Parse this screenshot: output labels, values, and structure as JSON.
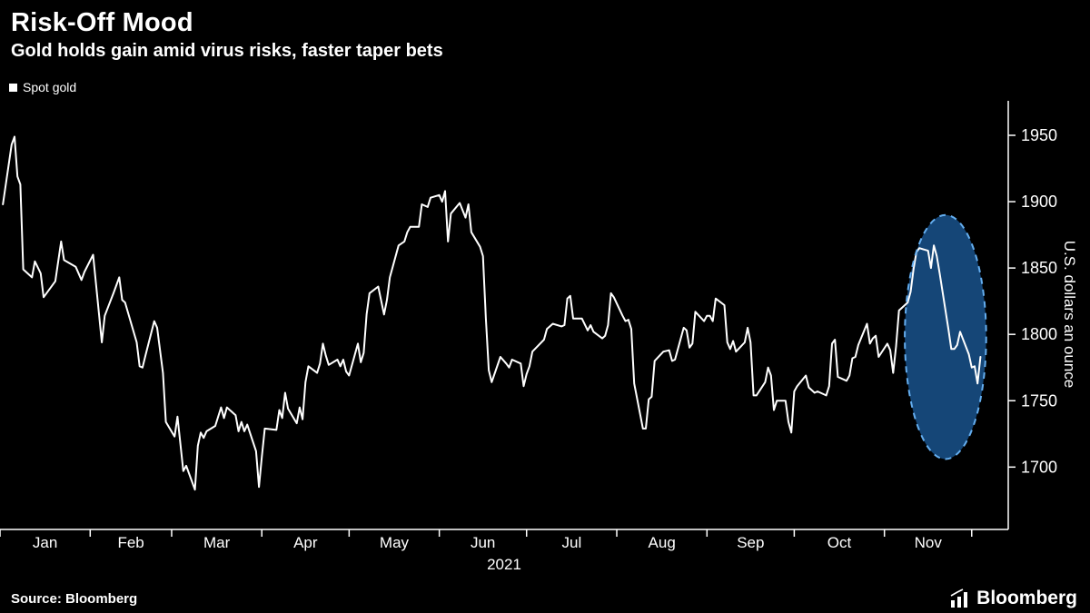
{
  "header": {
    "title": "Risk-Off Mood",
    "subtitle": "Gold holds gain amid virus risks, faster taper bets"
  },
  "legend": {
    "label": "Spot gold",
    "swatch_color": "#ffffff"
  },
  "footer": {
    "source": "Source: Bloomberg",
    "brand": "Bloomberg"
  },
  "chart_data": {
    "type": "line",
    "title": "Risk-Off Mood",
    "subtitle": "Gold holds gain amid virus risks, faster taper bets",
    "series_name": "Spot gold",
    "xlabel": "2021",
    "ylabel": "U.S. dollars an ounce",
    "x_months": [
      "Jan",
      "Feb",
      "Mar",
      "Apr",
      "May",
      "Jun",
      "Jul",
      "Aug",
      "Sep",
      "Oct",
      "Nov"
    ],
    "month_boundaries_day": [
      0,
      31,
      59,
      90,
      120,
      151,
      181,
      212,
      243,
      273,
      304,
      334
    ],
    "x_domain_days": [
      0,
      345
    ],
    "yticks": [
      1700,
      1750,
      1800,
      1850,
      1900,
      1950
    ],
    "ylim": [
      1653,
      1976
    ],
    "grid": false,
    "legend_position": "top-left",
    "background": "#000000",
    "line_color": "#ffffff",
    "points": [
      [
        1,
        1898
      ],
      [
        4,
        1943
      ],
      [
        5,
        1949
      ],
      [
        6,
        1919
      ],
      [
        7,
        1913
      ],
      [
        8,
        1849
      ],
      [
        11,
        1843
      ],
      [
        12,
        1855
      ],
      [
        14,
        1846
      ],
      [
        15,
        1828
      ],
      [
        19,
        1840
      ],
      [
        21,
        1870
      ],
      [
        22,
        1856
      ],
      [
        26,
        1851
      ],
      [
        28,
        1841
      ],
      [
        29,
        1847
      ],
      [
        32,
        1860
      ],
      [
        33,
        1838
      ],
      [
        35,
        1794
      ],
      [
        36,
        1814
      ],
      [
        39,
        1831
      ],
      [
        41,
        1843
      ],
      [
        42,
        1826
      ],
      [
        43,
        1824
      ],
      [
        47,
        1794
      ],
      [
        48,
        1776
      ],
      [
        49,
        1775
      ],
      [
        50,
        1784
      ],
      [
        53,
        1810
      ],
      [
        54,
        1805
      ],
      [
        56,
        1771
      ],
      [
        57,
        1734
      ],
      [
        60,
        1723
      ],
      [
        61,
        1738
      ],
      [
        63,
        1697
      ],
      [
        64,
        1701
      ],
      [
        67,
        1683
      ],
      [
        68,
        1716
      ],
      [
        69,
        1726
      ],
      [
        70,
        1722
      ],
      [
        71,
        1727
      ],
      [
        74,
        1731
      ],
      [
        76,
        1745
      ],
      [
        77,
        1737
      ],
      [
        78,
        1745
      ],
      [
        81,
        1739
      ],
      [
        82,
        1727
      ],
      [
        83,
        1734
      ],
      [
        84,
        1727
      ],
      [
        85,
        1732
      ],
      [
        88,
        1712
      ],
      [
        89,
        1685
      ],
      [
        90,
        1708
      ],
      [
        91,
        1729
      ],
      [
        95,
        1728
      ],
      [
        96,
        1743
      ],
      [
        97,
        1737
      ],
      [
        98,
        1756
      ],
      [
        99,
        1744
      ],
      [
        102,
        1733
      ],
      [
        103,
        1745
      ],
      [
        104,
        1736
      ],
      [
        105,
        1764
      ],
      [
        106,
        1776
      ],
      [
        109,
        1771
      ],
      [
        110,
        1778
      ],
      [
        111,
        1793
      ],
      [
        112,
        1784
      ],
      [
        113,
        1777
      ],
      [
        116,
        1781
      ],
      [
        117,
        1776
      ],
      [
        118,
        1781
      ],
      [
        119,
        1772
      ],
      [
        120,
        1769
      ],
      [
        123,
        1793
      ],
      [
        124,
        1779
      ],
      [
        125,
        1786
      ],
      [
        126,
        1815
      ],
      [
        127,
        1831
      ],
      [
        130,
        1836
      ],
      [
        132,
        1815
      ],
      [
        133,
        1826
      ],
      [
        134,
        1843
      ],
      [
        137,
        1867
      ],
      [
        139,
        1870
      ],
      [
        140,
        1877
      ],
      [
        141,
        1881
      ],
      [
        144,
        1881
      ],
      [
        145,
        1898
      ],
      [
        147,
        1896
      ],
      [
        148,
        1903
      ],
      [
        151,
        1905
      ],
      [
        152,
        1900
      ],
      [
        153,
        1908
      ],
      [
        154,
        1870
      ],
      [
        155,
        1891
      ],
      [
        158,
        1899
      ],
      [
        160,
        1888
      ],
      [
        161,
        1898
      ],
      [
        162,
        1877
      ],
      [
        165,
        1866
      ],
      [
        166,
        1859
      ],
      [
        167,
        1812
      ],
      [
        168,
        1773
      ],
      [
        169,
        1764
      ],
      [
        172,
        1783
      ],
      [
        174,
        1778
      ],
      [
        175,
        1775
      ],
      [
        176,
        1781
      ],
      [
        179,
        1778
      ],
      [
        180,
        1761
      ],
      [
        181,
        1770
      ],
      [
        182,
        1776
      ],
      [
        183,
        1787
      ],
      [
        187,
        1796
      ],
      [
        188,
        1804
      ],
      [
        190,
        1808
      ],
      [
        193,
        1806
      ],
      [
        194,
        1807
      ],
      [
        195,
        1827
      ],
      [
        196,
        1829
      ],
      [
        197,
        1812
      ],
      [
        200,
        1812
      ],
      [
        202,
        1803
      ],
      [
        203,
        1807
      ],
      [
        204,
        1802
      ],
      [
        207,
        1797
      ],
      [
        208,
        1799
      ],
      [
        209,
        1807
      ],
      [
        210,
        1831
      ],
      [
        211,
        1828
      ],
      [
        214,
        1814
      ],
      [
        215,
        1810
      ],
      [
        216,
        1811
      ],
      [
        217,
        1804
      ],
      [
        218,
        1763
      ],
      [
        221,
        1729
      ],
      [
        222,
        1729
      ],
      [
        223,
        1751
      ],
      [
        224,
        1753
      ],
      [
        225,
        1780
      ],
      [
        228,
        1787
      ],
      [
        230,
        1788
      ],
      [
        231,
        1780
      ],
      [
        232,
        1781
      ],
      [
        235,
        1805
      ],
      [
        236,
        1803
      ],
      [
        237,
        1790
      ],
      [
        238,
        1793
      ],
      [
        239,
        1817
      ],
      [
        242,
        1810
      ],
      [
        243,
        1814
      ],
      [
        244,
        1814
      ],
      [
        245,
        1810
      ],
      [
        246,
        1827
      ],
      [
        249,
        1822
      ],
      [
        250,
        1794
      ],
      [
        251,
        1789
      ],
      [
        252,
        1795
      ],
      [
        253,
        1787
      ],
      [
        256,
        1794
      ],
      [
        257,
        1805
      ],
      [
        258,
        1794
      ],
      [
        259,
        1754
      ],
      [
        260,
        1754
      ],
      [
        263,
        1764
      ],
      [
        264,
        1775
      ],
      [
        265,
        1769
      ],
      [
        266,
        1743
      ],
      [
        267,
        1750
      ],
      [
        270,
        1750
      ],
      [
        271,
        1734
      ],
      [
        272,
        1726
      ],
      [
        273,
        1757
      ],
      [
        274,
        1761
      ],
      [
        277,
        1769
      ],
      [
        278,
        1760
      ],
      [
        280,
        1756
      ],
      [
        281,
        1757
      ],
      [
        284,
        1754
      ],
      [
        285,
        1761
      ],
      [
        286,
        1793
      ],
      [
        287,
        1796
      ],
      [
        288,
        1768
      ],
      [
        291,
        1765
      ],
      [
        292,
        1769
      ],
      [
        293,
        1782
      ],
      [
        294,
        1783
      ],
      [
        295,
        1792
      ],
      [
        298,
        1808
      ],
      [
        299,
        1793
      ],
      [
        300,
        1797
      ],
      [
        301,
        1799
      ],
      [
        302,
        1783
      ],
      [
        305,
        1793
      ],
      [
        306,
        1788
      ],
      [
        307,
        1771
      ],
      [
        308,
        1791
      ],
      [
        309,
        1818
      ],
      [
        312,
        1824
      ],
      [
        313,
        1832
      ],
      [
        314,
        1849
      ],
      [
        315,
        1862
      ],
      [
        316,
        1865
      ],
      [
        319,
        1863
      ],
      [
        320,
        1850
      ],
      [
        321,
        1867
      ],
      [
        322,
        1859
      ],
      [
        323,
        1846
      ],
      [
        326,
        1804
      ],
      [
        327,
        1789
      ],
      [
        328,
        1789
      ],
      [
        329,
        1792
      ],
      [
        330,
        1802
      ],
      [
        333,
        1785
      ],
      [
        334,
        1775
      ],
      [
        335,
        1776
      ],
      [
        336,
        1763
      ],
      [
        337,
        1783
      ]
    ],
    "highlight": {
      "shape": "ellipse",
      "center_day": 325,
      "center_price": 1798,
      "rx_days": 14,
      "ry_price": 92,
      "fill": "#164a7d",
      "fill_opacity": 0.95,
      "stroke": "#64aef0",
      "stroke_style": "dashed"
    }
  }
}
